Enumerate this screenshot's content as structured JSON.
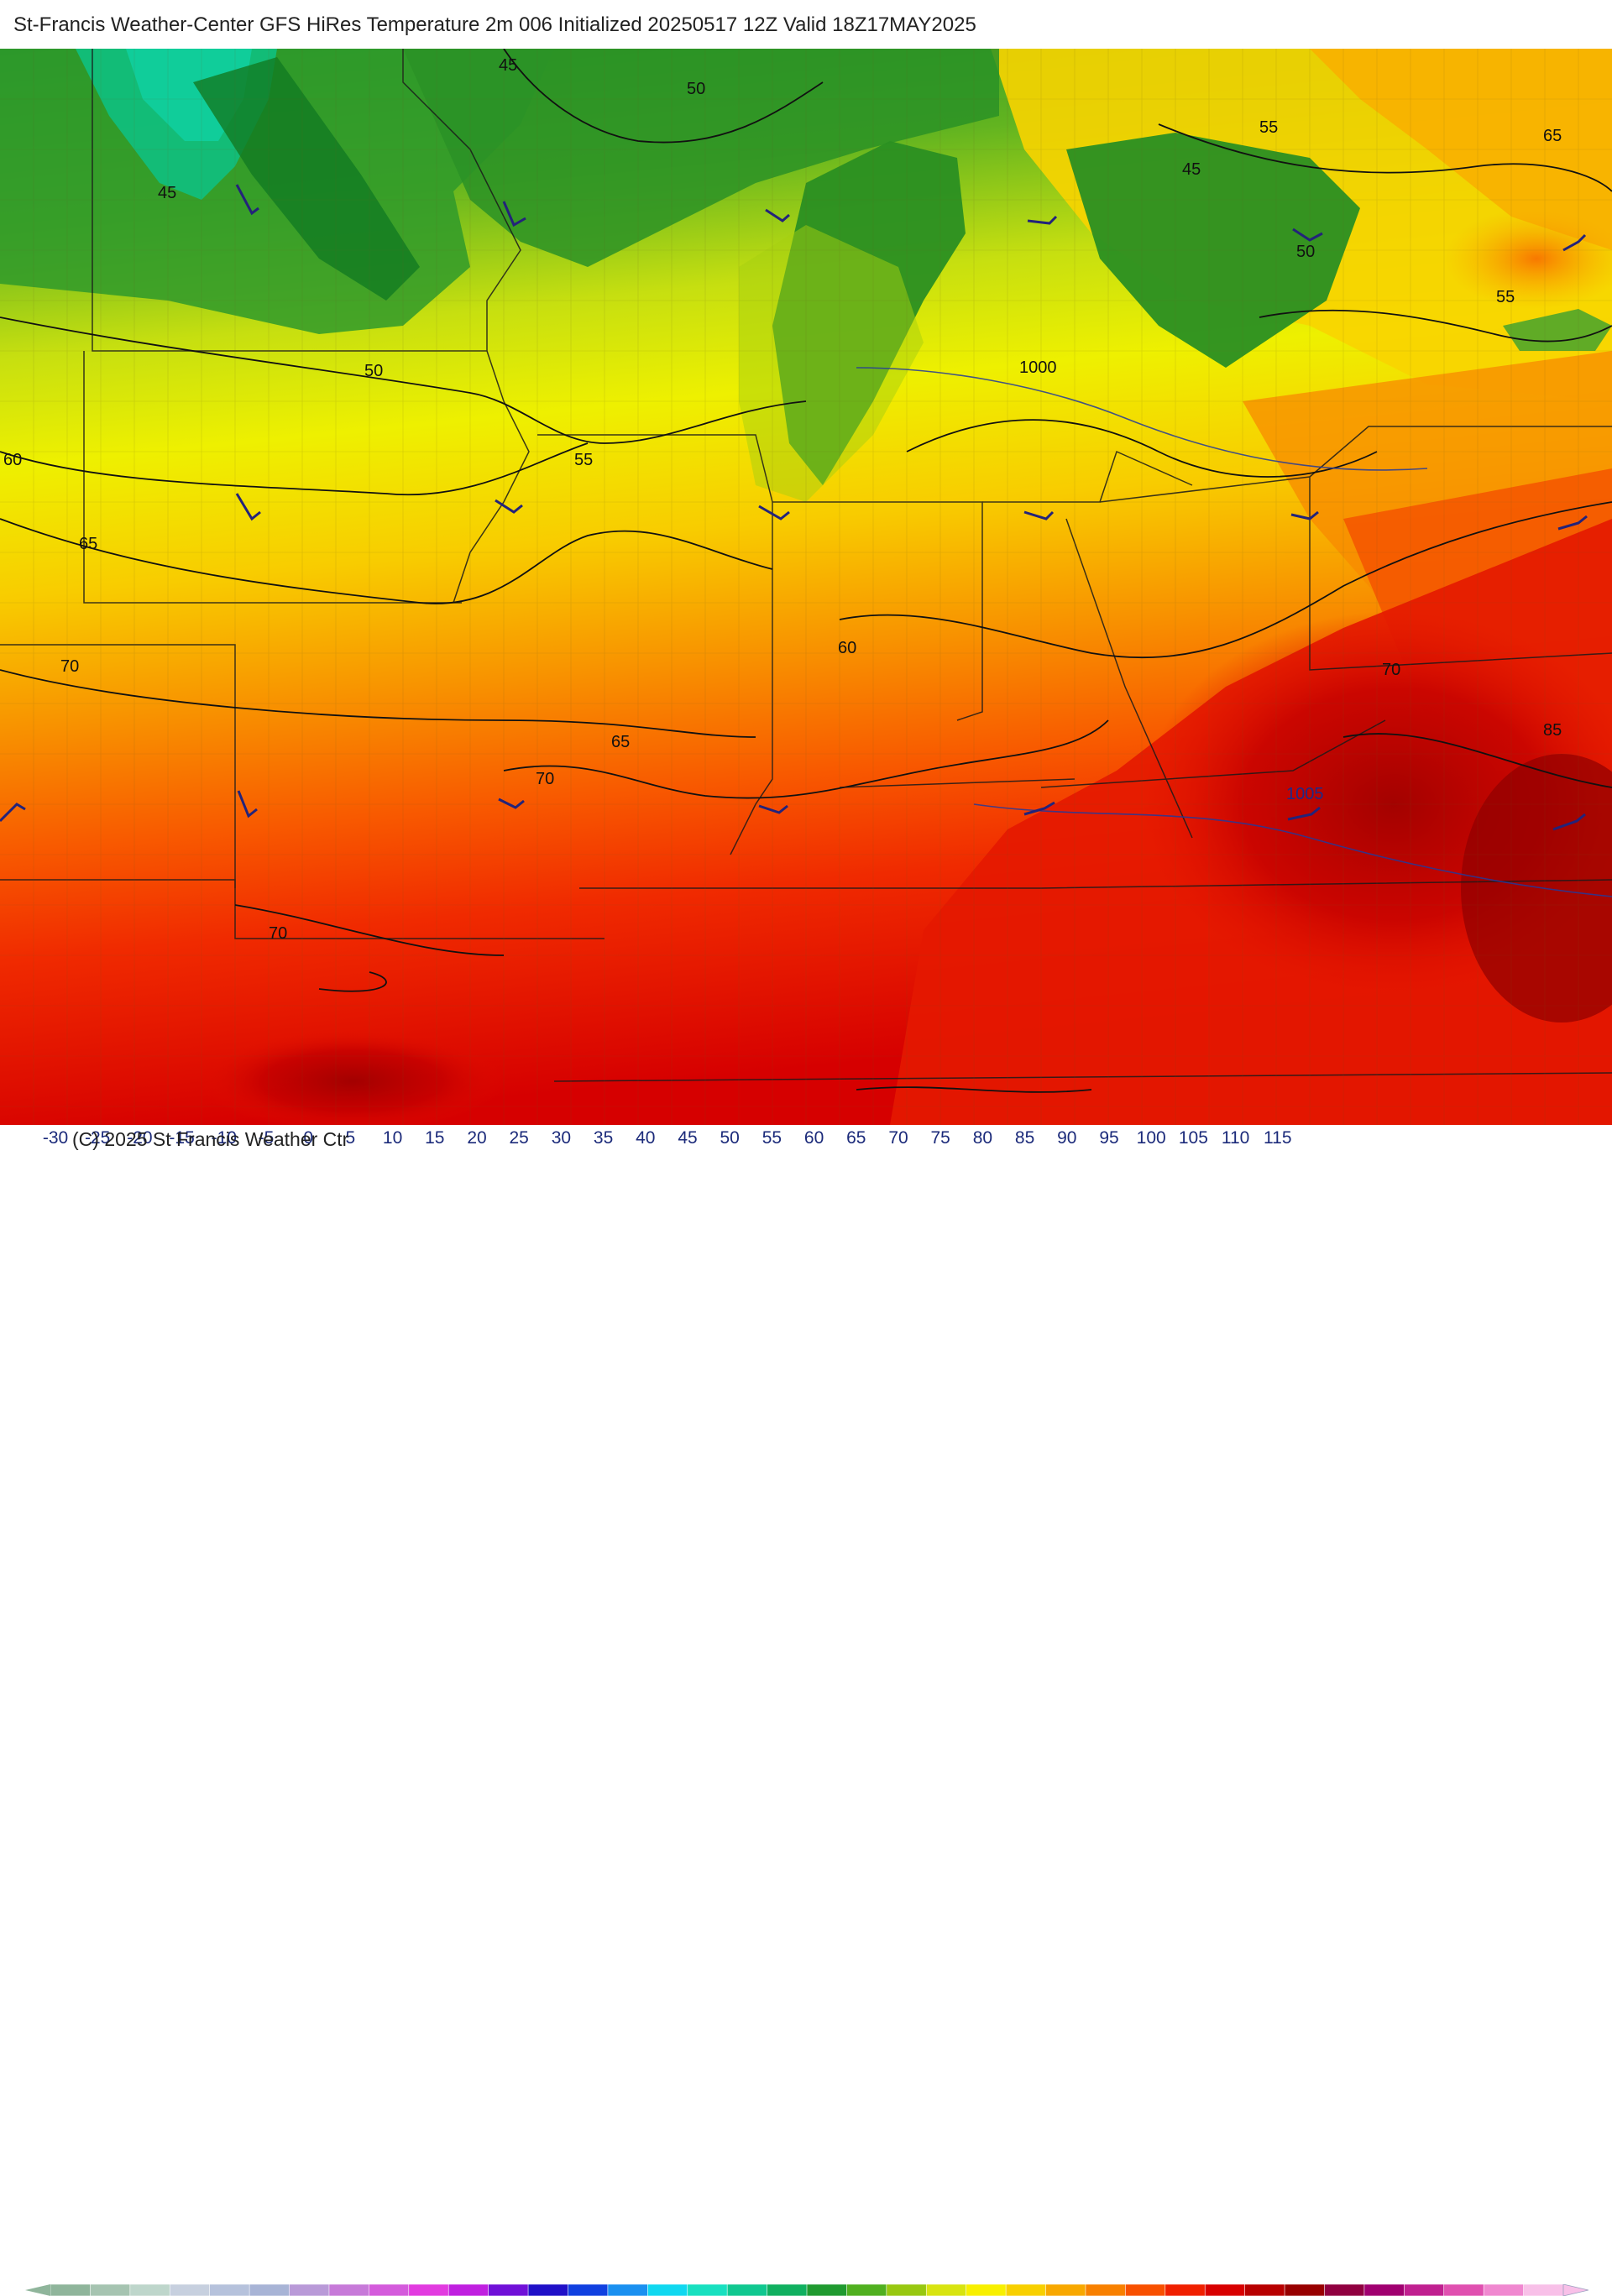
{
  "title": "St-Francis Weather-Center GFS HiRes Temperature 2m  006 Initialized 20250517 12Z Valid 18Z17MAY2025",
  "copyright": "(C) 2025 St Francis Weather Ctr",
  "contour_labels": [
    "45",
    "50",
    "45",
    "55",
    "65",
    "45",
    "50",
    "55",
    "1000",
    "50",
    "60",
    "55",
    "65",
    "60",
    "70",
    "70",
    "65",
    "70",
    "85",
    "1005",
    "70"
  ],
  "isobar_labels": [
    "1000",
    "1005"
  ],
  "legend": {
    "ticks": [
      "-30",
      "-25",
      "-20",
      "-15",
      "-10",
      "-5",
      "0",
      "5",
      "10",
      "15",
      "20",
      "25",
      "30",
      "35",
      "40",
      "45",
      "50",
      "55",
      "60",
      "65",
      "70",
      "75",
      "80",
      "85",
      "90",
      "95",
      "100",
      "105",
      "110",
      "115"
    ],
    "colors": [
      "#8fb59b",
      "#a6c4b1",
      "#bed6cb",
      "#c7d0df",
      "#b6c2dc",
      "#a8b4d6",
      "#b99ad8",
      "#c77ad9",
      "#d45bdc",
      "#e23be0",
      "#c020e0",
      "#7010d8",
      "#2010c8",
      "#1040e0",
      "#1a90f0",
      "#10d8f0",
      "#18e0c0",
      "#10c890",
      "#10b060",
      "#209a30",
      "#50b020",
      "#98c810",
      "#d8e410",
      "#f8f000",
      "#f8d000",
      "#f8a800",
      "#f88000",
      "#f85000",
      "#f02000",
      "#d80000",
      "#b80000",
      "#980000",
      "#900040",
      "#a00070",
      "#c02090",
      "#e050b0",
      "#f088d0",
      "#f8c0e8"
    ]
  }
}
